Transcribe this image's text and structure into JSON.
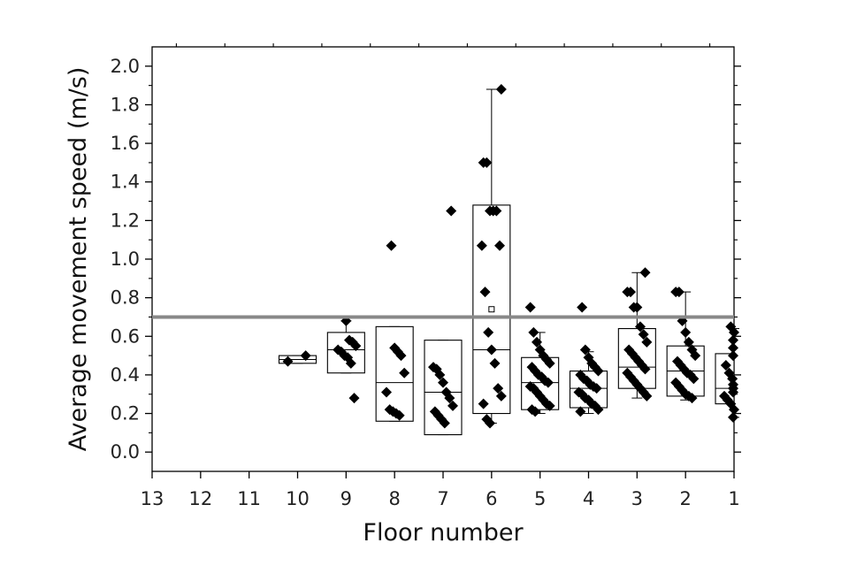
{
  "chart_data": {
    "type": "box",
    "xlabel": "Floor number",
    "ylabel": "Average movement speed (m/s)",
    "x_categories": [
      "13",
      "12",
      "11",
      "10",
      "9",
      "8",
      "7",
      "6",
      "5",
      "4",
      "3",
      "2",
      "1"
    ],
    "y_ticks": [
      "0.0",
      "0.2",
      "0.4",
      "0.6",
      "0.8",
      "1.0",
      "1.2",
      "1.4",
      "1.6",
      "1.8",
      "2.0"
    ],
    "ylim": [
      -0.1,
      2.1
    ],
    "reference_line": {
      "y": 0.7,
      "color": "#888888"
    },
    "marker_color": "#000000",
    "boxes": [
      {
        "floor": "10",
        "q1": 0.46,
        "median": 0.48,
        "q3": 0.5,
        "whisker_low": 0.46,
        "whisker_high": 0.5,
        "mean": null,
        "points": [
          0.47,
          0.5
        ]
      },
      {
        "floor": "9",
        "q1": 0.41,
        "median": 0.53,
        "q3": 0.62,
        "whisker_low": 0.41,
        "whisker_high": 0.68,
        "mean": null,
        "points": [
          0.28,
          0.46,
          0.49,
          0.5,
          0.52,
          0.53,
          0.55,
          0.57,
          0.58,
          0.68
        ]
      },
      {
        "floor": "8",
        "q1": 0.16,
        "median": 0.36,
        "q3": 0.65,
        "whisker_low": 0.16,
        "whisker_high": 0.65,
        "mean": null,
        "points": [
          0.19,
          0.2,
          0.21,
          0.22,
          0.31,
          0.41,
          0.5,
          0.52,
          0.54,
          1.07
        ]
      },
      {
        "floor": "7",
        "q1": 0.09,
        "median": 0.31,
        "q3": 0.58,
        "whisker_low": 0.09,
        "whisker_high": 0.58,
        "mean": null,
        "points": [
          0.15,
          0.17,
          0.19,
          0.21,
          0.24,
          0.28,
          0.31,
          0.36,
          0.4,
          0.43,
          0.44,
          1.25
        ]
      },
      {
        "floor": "6",
        "q1": 0.2,
        "median": 0.53,
        "q3": 1.28,
        "whisker_low": 0.15,
        "whisker_high": 1.88,
        "mean": 0.74,
        "points": [
          0.15,
          0.17,
          0.25,
          0.29,
          0.33,
          0.46,
          0.53,
          0.62,
          0.83,
          1.07,
          1.07,
          1.25,
          1.25,
          1.25,
          1.5,
          1.5,
          1.88
        ]
      },
      {
        "floor": "5",
        "q1": 0.22,
        "median": 0.36,
        "q3": 0.49,
        "whisker_low": 0.2,
        "whisker_high": 0.62,
        "mean": null,
        "points": [
          0.21,
          0.22,
          0.24,
          0.25,
          0.27,
          0.29,
          0.31,
          0.33,
          0.34,
          0.36,
          0.37,
          0.39,
          0.4,
          0.42,
          0.44,
          0.46,
          0.48,
          0.5,
          0.53,
          0.57,
          0.62,
          0.75
        ]
      },
      {
        "floor": "4",
        "q1": 0.23,
        "median": 0.33,
        "q3": 0.42,
        "whisker_low": 0.2,
        "whisker_high": 0.52,
        "mean": null,
        "points": [
          0.21,
          0.22,
          0.24,
          0.25,
          0.27,
          0.28,
          0.3,
          0.31,
          0.33,
          0.34,
          0.35,
          0.37,
          0.38,
          0.4,
          0.42,
          0.44,
          0.46,
          0.49,
          0.53,
          0.75
        ]
      },
      {
        "floor": "3",
        "q1": 0.33,
        "median": 0.44,
        "q3": 0.64,
        "whisker_low": 0.28,
        "whisker_high": 0.93,
        "mean": null,
        "points": [
          0.29,
          0.31,
          0.33,
          0.35,
          0.37,
          0.39,
          0.41,
          0.43,
          0.45,
          0.47,
          0.49,
          0.51,
          0.53,
          0.57,
          0.61,
          0.65,
          0.75,
          0.75,
          0.83,
          0.83,
          0.93
        ]
      },
      {
        "floor": "2",
        "q1": 0.29,
        "median": 0.42,
        "q3": 0.55,
        "whisker_low": 0.27,
        "whisker_high": 0.83,
        "mean": null,
        "points": [
          0.28,
          0.29,
          0.3,
          0.32,
          0.34,
          0.36,
          0.38,
          0.4,
          0.41,
          0.43,
          0.45,
          0.47,
          0.5,
          0.53,
          0.57,
          0.62,
          0.68,
          0.83,
          0.83
        ]
      },
      {
        "floor": "1",
        "q1": 0.25,
        "median": 0.33,
        "q3": 0.51,
        "whisker_low": 0.18,
        "whisker_high": 0.64,
        "mean": null,
        "points": [
          0.18,
          0.22,
          0.25,
          0.27,
          0.29,
          0.31,
          0.33,
          0.35,
          0.38,
          0.41,
          0.45,
          0.5,
          0.54,
          0.58,
          0.62,
          0.65
        ]
      }
    ]
  }
}
